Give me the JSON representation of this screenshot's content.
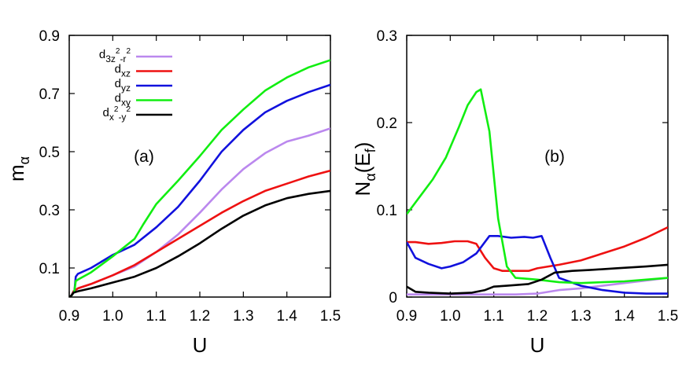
{
  "chart_data": [
    {
      "type": "line",
      "panel_label": "(a)",
      "xlabel": "U",
      "ylabel": {
        "main": "m",
        "sub": "α"
      },
      "xlim": [
        0.9,
        1.5
      ],
      "ylim": [
        0.0,
        0.9
      ],
      "xticks": [
        "0.9",
        "1.0",
        "1.1",
        "1.2",
        "1.3",
        "1.4",
        "1.5"
      ],
      "yticks": [
        {
          "value": 0.1,
          "label": "0.1"
        },
        {
          "value": 0.3,
          "label": "0.3"
        },
        {
          "value": 0.5,
          "label": "0.5"
        },
        {
          "value": 0.7,
          "label": "0.7"
        },
        {
          "value": 0.9,
          "label": "0.9"
        }
      ],
      "grid": false,
      "legend_position": "top-left",
      "legend": [
        {
          "series": "d3z2-r2",
          "main": "d",
          "sub": "3z",
          "sup": "2",
          "rest_sub": "-r",
          "rest_sup": "2"
        },
        {
          "series": "dxz",
          "main": "d",
          "sub": "xz"
        },
        {
          "series": "dyz",
          "main": "d",
          "sub": "yz"
        },
        {
          "series": "dxy",
          "main": "d",
          "sub": "xy"
        },
        {
          "series": "dx2-y2",
          "main": "d",
          "sub": "x",
          "sup": "2",
          "rest_sub": "-y",
          "rest_sup": "2"
        }
      ],
      "series": [
        {
          "name": "d3z2-r2",
          "color": "#bb88ee",
          "points": [
            [
              0.9,
              0.0
            ],
            [
              0.905,
              0.005
            ],
            [
              0.91,
              0.02
            ],
            [
              0.92,
              0.03
            ],
            [
              0.95,
              0.045
            ],
            [
              1.0,
              0.075
            ],
            [
              1.05,
              0.105
            ],
            [
              1.1,
              0.155
            ],
            [
              1.15,
              0.215
            ],
            [
              1.2,
              0.29
            ],
            [
              1.25,
              0.37
            ],
            [
              1.3,
              0.44
            ],
            [
              1.35,
              0.495
            ],
            [
              1.4,
              0.535
            ],
            [
              1.45,
              0.555
            ],
            [
              1.5,
              0.58
            ]
          ]
        },
        {
          "name": "dxz",
          "color": "#ee1111",
          "points": [
            [
              0.9,
              0.0
            ],
            [
              0.905,
              0.005
            ],
            [
              0.91,
              0.02
            ],
            [
              0.92,
              0.03
            ],
            [
              0.95,
              0.045
            ],
            [
              1.0,
              0.075
            ],
            [
              1.05,
              0.11
            ],
            [
              1.1,
              0.155
            ],
            [
              1.15,
              0.2
            ],
            [
              1.2,
              0.245
            ],
            [
              1.25,
              0.29
            ],
            [
              1.3,
              0.33
            ],
            [
              1.35,
              0.365
            ],
            [
              1.4,
              0.39
            ],
            [
              1.45,
              0.415
            ],
            [
              1.5,
              0.435
            ]
          ]
        },
        {
          "name": "dyz",
          "color": "#1111dd",
          "points": [
            [
              0.9,
              0.0
            ],
            [
              0.905,
              0.005
            ],
            [
              0.912,
              0.02
            ],
            [
              0.915,
              0.07
            ],
            [
              0.92,
              0.08
            ],
            [
              0.95,
              0.1
            ],
            [
              1.0,
              0.145
            ],
            [
              1.05,
              0.18
            ],
            [
              1.1,
              0.24
            ],
            [
              1.15,
              0.31
            ],
            [
              1.2,
              0.4
            ],
            [
              1.25,
              0.5
            ],
            [
              1.3,
              0.575
            ],
            [
              1.35,
              0.635
            ],
            [
              1.4,
              0.675
            ],
            [
              1.45,
              0.705
            ],
            [
              1.5,
              0.73
            ]
          ]
        },
        {
          "name": "dxy",
          "color": "#11ee11",
          "points": [
            [
              0.9,
              0.0
            ],
            [
              0.905,
              0.005
            ],
            [
              0.912,
              0.02
            ],
            [
              0.915,
              0.055
            ],
            [
              0.92,
              0.06
            ],
            [
              0.95,
              0.085
            ],
            [
              1.0,
              0.14
            ],
            [
              1.05,
              0.2
            ],
            [
              1.07,
              0.25
            ],
            [
              1.1,
              0.32
            ],
            [
              1.15,
              0.4
            ],
            [
              1.2,
              0.485
            ],
            [
              1.25,
              0.575
            ],
            [
              1.3,
              0.645
            ],
            [
              1.35,
              0.71
            ],
            [
              1.4,
              0.755
            ],
            [
              1.45,
              0.79
            ],
            [
              1.5,
              0.815
            ]
          ]
        },
        {
          "name": "dx2-y2",
          "color": "#000000",
          "points": [
            [
              0.9,
              0.0
            ],
            [
              0.905,
              0.005
            ],
            [
              0.91,
              0.015
            ],
            [
              0.92,
              0.02
            ],
            [
              0.95,
              0.03
            ],
            [
              1.0,
              0.05
            ],
            [
              1.05,
              0.07
            ],
            [
              1.1,
              0.1
            ],
            [
              1.15,
              0.14
            ],
            [
              1.2,
              0.185
            ],
            [
              1.25,
              0.235
            ],
            [
              1.3,
              0.28
            ],
            [
              1.35,
              0.315
            ],
            [
              1.4,
              0.34
            ],
            [
              1.45,
              0.355
            ],
            [
              1.5,
              0.365
            ]
          ]
        }
      ]
    },
    {
      "type": "line",
      "panel_label": "(b)",
      "xlabel": "U",
      "ylabel": {
        "main": "N",
        "sub": "α",
        "rest": "(E",
        "rest_sub": "f",
        "close": ")"
      },
      "xlim": [
        0.9,
        1.5
      ],
      "ylim": [
        0.0,
        0.3
      ],
      "xticks": [
        "0.9",
        "1.0",
        "1.1",
        "1.2",
        "1.3",
        "1.4",
        "1.5"
      ],
      "yticks": [
        {
          "value": 0.0,
          "label": "0"
        },
        {
          "value": 0.1,
          "label": "0.1"
        },
        {
          "value": 0.2,
          "label": "0.2"
        },
        {
          "value": 0.3,
          "label": "0.3"
        }
      ],
      "grid": false,
      "series": [
        {
          "name": "d3z2-r2",
          "color": "#bb88ee",
          "points": [
            [
              0.9,
              0.003
            ],
            [
              0.95,
              0.003
            ],
            [
              1.0,
              0.003
            ],
            [
              1.1,
              0.003
            ],
            [
              1.15,
              0.003
            ],
            [
              1.2,
              0.004
            ],
            [
              1.25,
              0.008
            ],
            [
              1.3,
              0.01
            ],
            [
              1.35,
              0.013
            ],
            [
              1.4,
              0.016
            ],
            [
              1.45,
              0.019
            ],
            [
              1.5,
              0.022
            ]
          ]
        },
        {
          "name": "dxz",
          "color": "#ee1111",
          "points": [
            [
              0.9,
              0.063
            ],
            [
              0.92,
              0.063
            ],
            [
              0.95,
              0.061
            ],
            [
              0.98,
              0.062
            ],
            [
              1.01,
              0.064
            ],
            [
              1.04,
              0.064
            ],
            [
              1.06,
              0.061
            ],
            [
              1.08,
              0.045
            ],
            [
              1.1,
              0.033
            ],
            [
              1.12,
              0.03
            ],
            [
              1.15,
              0.03
            ],
            [
              1.18,
              0.03
            ],
            [
              1.2,
              0.033
            ],
            [
              1.25,
              0.037
            ],
            [
              1.3,
              0.042
            ],
            [
              1.35,
              0.05
            ],
            [
              1.4,
              0.058
            ],
            [
              1.45,
              0.068
            ],
            [
              1.5,
              0.08
            ]
          ]
        },
        {
          "name": "dyz",
          "color": "#1111dd",
          "points": [
            [
              0.9,
              0.063
            ],
            [
              0.92,
              0.045
            ],
            [
              0.95,
              0.038
            ],
            [
              0.98,
              0.033
            ],
            [
              1.0,
              0.035
            ],
            [
              1.03,
              0.04
            ],
            [
              1.06,
              0.05
            ],
            [
              1.09,
              0.07
            ],
            [
              1.11,
              0.07
            ],
            [
              1.14,
              0.068
            ],
            [
              1.17,
              0.069
            ],
            [
              1.19,
              0.068
            ],
            [
              1.21,
              0.07
            ],
            [
              1.23,
              0.045
            ],
            [
              1.25,
              0.022
            ],
            [
              1.3,
              0.013
            ],
            [
              1.35,
              0.008
            ],
            [
              1.4,
              0.005
            ],
            [
              1.45,
              0.004
            ],
            [
              1.5,
              0.004
            ]
          ]
        },
        {
          "name": "dxy",
          "color": "#11ee11",
          "points": [
            [
              0.9,
              0.095
            ],
            [
              0.93,
              0.115
            ],
            [
              0.96,
              0.135
            ],
            [
              0.99,
              0.16
            ],
            [
              1.02,
              0.195
            ],
            [
              1.04,
              0.22
            ],
            [
              1.06,
              0.235
            ],
            [
              1.07,
              0.238
            ],
            [
              1.09,
              0.19
            ],
            [
              1.11,
              0.09
            ],
            [
              1.13,
              0.035
            ],
            [
              1.15,
              0.022
            ],
            [
              1.2,
              0.02
            ],
            [
              1.25,
              0.017
            ],
            [
              1.3,
              0.016
            ],
            [
              1.35,
              0.017
            ],
            [
              1.4,
              0.018
            ],
            [
              1.45,
              0.02
            ],
            [
              1.5,
              0.022
            ]
          ]
        },
        {
          "name": "dx2-y2",
          "color": "#000000",
          "points": [
            [
              0.9,
              0.012
            ],
            [
              0.92,
              0.006
            ],
            [
              0.95,
              0.005
            ],
            [
              1.0,
              0.004
            ],
            [
              1.05,
              0.005
            ],
            [
              1.08,
              0.008
            ],
            [
              1.1,
              0.012
            ],
            [
              1.13,
              0.013
            ],
            [
              1.18,
              0.015
            ],
            [
              1.21,
              0.02
            ],
            [
              1.24,
              0.028
            ],
            [
              1.28,
              0.03
            ],
            [
              1.32,
              0.031
            ],
            [
              1.38,
              0.033
            ],
            [
              1.45,
              0.035
            ],
            [
              1.5,
              0.037
            ]
          ]
        }
      ]
    }
  ]
}
